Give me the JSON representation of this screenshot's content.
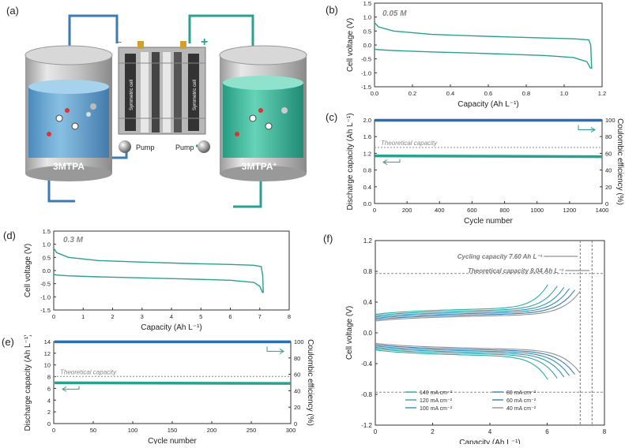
{
  "panels": {
    "a": "(a)",
    "b": "(b)",
    "c": "(c)",
    "d": "(d)",
    "e": "(e)",
    "f": "(f)"
  },
  "schematic": {
    "left_tank_label": "3MTPA",
    "right_tank_label": "3MTPA",
    "right_tank_superscript": "+",
    "pump_left": "Pump",
    "pump_right": "Pump",
    "cell_label_left": "Symmetric cell",
    "cell_label_right": "Symmetric cell",
    "minus_sign": "−",
    "plus_sign": "+"
  },
  "colors": {
    "teal": "#2aa090",
    "blue": "#2a6fb6",
    "gray": "#8c8c8c",
    "left_electrolyte": "#5aa0d0",
    "right_electrolyte": "#2fb89a"
  },
  "chart_data": [
    {
      "id": "b",
      "type": "line",
      "annotation": "0.05 M",
      "xlabel": "Capacity (Ah L⁻¹)",
      "ylabel": "Cell voltage (V)",
      "xlim": [
        0,
        1.2
      ],
      "ylim": [
        -1.5,
        1.5
      ],
      "xticks": [
        "0.0",
        "0.2",
        "0.4",
        "0.6",
        "0.8",
        "1.0",
        "1.2"
      ],
      "yticks": [
        "-1.5",
        "-1.0",
        "-0.5",
        "0.0",
        "0.5",
        "1.0",
        "1.5"
      ],
      "series": [
        {
          "x": [
            0,
            0.02,
            0.1,
            0.3,
            0.5,
            0.7,
            0.9,
            1.05,
            1.13,
            1.14,
            1.145
          ],
          "y": [
            0.8,
            0.65,
            0.5,
            0.38,
            0.33,
            0.29,
            0.25,
            0.22,
            0.18,
            0.0,
            -0.85
          ]
        },
        {
          "x": [
            0,
            0.02,
            0.1,
            0.3,
            0.5,
            0.7,
            0.9,
            1.05,
            1.12,
            1.14
          ],
          "y": [
            -0.15,
            -0.17,
            -0.2,
            -0.25,
            -0.29,
            -0.33,
            -0.38,
            -0.45,
            -0.6,
            -0.85
          ]
        }
      ]
    },
    {
      "id": "c",
      "type": "line",
      "xlabel": "Cycle number",
      "ylabel": "Discharge capacity (Ah L⁻¹)",
      "y2label": "Coulombic efficiency (%)",
      "xlim": [
        0,
        1400
      ],
      "ylim": [
        0,
        2.0
      ],
      "y2lim": [
        0,
        100
      ],
      "xticks": [
        "0",
        "200",
        "400",
        "600",
        "800",
        "1000",
        "1200",
        "1400"
      ],
      "yticks": [
        "0.0",
        "0.4",
        "0.8",
        "1.2",
        "1.6",
        "2.0"
      ],
      "y2ticks": [
        "0",
        "20",
        "40",
        "60",
        "80",
        "100"
      ],
      "reference_label": "Theoretical capacity",
      "reference_value": 1.34,
      "series": [
        {
          "name": "Coulombic efficiency",
          "axis": "right",
          "x": [
            1,
            1400
          ],
          "y": [
            99.5,
            99.5
          ]
        },
        {
          "name": "Discharge capacity",
          "axis": "left",
          "x": [
            1,
            1400
          ],
          "y": [
            1.14,
            1.12
          ]
        }
      ]
    },
    {
      "id": "d",
      "type": "line",
      "annotation": "0.3 M",
      "xlabel": "Capacity (Ah L⁻¹)",
      "ylabel": "Cell voltage (V)",
      "xlim": [
        0,
        8
      ],
      "ylim": [
        -1.5,
        1.5
      ],
      "xticks": [
        "0",
        "1",
        "2",
        "3",
        "4",
        "5",
        "6",
        "7",
        "8"
      ],
      "yticks": [
        "-1.5",
        "-1.0",
        "-0.5",
        "0.0",
        "0.5",
        "1.0",
        "1.5"
      ],
      "series": [
        {
          "x": [
            0,
            0.1,
            0.5,
            1.5,
            3,
            4.5,
            6,
            6.8,
            7.05,
            7.1,
            7.12
          ],
          "y": [
            0.85,
            0.68,
            0.5,
            0.38,
            0.32,
            0.27,
            0.23,
            0.2,
            0.15,
            -0.2,
            -0.85
          ]
        },
        {
          "x": [
            0,
            0.1,
            0.5,
            1.5,
            3,
            4.5,
            6,
            6.8,
            7.0,
            7.1
          ],
          "y": [
            -0.15,
            -0.17,
            -0.2,
            -0.24,
            -0.28,
            -0.32,
            -0.37,
            -0.45,
            -0.6,
            -0.85
          ]
        }
      ]
    },
    {
      "id": "e",
      "type": "line",
      "xlabel": "Cycle number",
      "ylabel": "Discharge capacity (Ah L⁻¹)",
      "y2label": "Coulombic efficiency (%)",
      "xlim": [
        0,
        300
      ],
      "ylim": [
        0,
        14
      ],
      "y2lim": [
        0,
        100
      ],
      "xticks": [
        "0",
        "50",
        "100",
        "150",
        "200",
        "250",
        "300"
      ],
      "yticks": [
        "0",
        "2",
        "4",
        "6",
        "8",
        "10",
        "12",
        "14"
      ],
      "y2ticks": [
        "0",
        "20",
        "40",
        "60",
        "80",
        "100"
      ],
      "reference_label": "Theoretical capacity",
      "reference_value": 8.04,
      "series": [
        {
          "name": "Coulombic efficiency",
          "axis": "right",
          "x": [
            1,
            300
          ],
          "y": [
            99.6,
            99.6
          ]
        },
        {
          "name": "Discharge capacity",
          "axis": "left",
          "x": [
            1,
            300
          ],
          "y": [
            6.95,
            6.85
          ]
        }
      ]
    },
    {
      "id": "f",
      "type": "line",
      "xlabel": "Capacity (Ah L⁻¹)",
      "ylabel": "Cell voltage (V)",
      "xlim": [
        0,
        8.5
      ],
      "ylim": [
        -1.4,
        1.4
      ],
      "xticks": [
        "0",
        "2",
        "4",
        "6",
        "8"
      ],
      "yticks": [
        "-1.2",
        "-0.8",
        "-0.4",
        "0.0",
        "0.4",
        "0.8",
        "1.2"
      ],
      "annotations": [
        {
          "text": "Cycling capacity 7.60 Ah L⁻¹",
          "x": 7.6
        },
        {
          "text": "Theoretical capacity 8.04 Ah L⁻¹",
          "x": 8.04
        }
      ],
      "cutoffs": [
        0.9,
        -0.9
      ],
      "legend": [
        "140 mA cm⁻²",
        "120 mA cm⁻²",
        "100 mA cm⁻²",
        "80 mA cm⁻²",
        "60 mA cm⁻²",
        "40 mA cm⁻²"
      ],
      "series": [
        {
          "name": "140 mA cm⁻²",
          "color": "#2ab0a0",
          "capacity": 6.4
        },
        {
          "name": "120 mA cm⁻²",
          "color": "#3aa0a8",
          "capacity": 6.75
        },
        {
          "name": "100 mA cm⁻²",
          "color": "#2a98b0",
          "capacity": 7.0
        },
        {
          "name": "80 mA cm⁻²",
          "color": "#3a8ab0",
          "capacity": 7.2
        },
        {
          "name": "60 mA cm⁻²",
          "color": "#3a7ab0",
          "capacity": 7.4
        },
        {
          "name": "40 mA cm⁻²",
          "color": "#909090",
          "capacity": 7.6
        }
      ]
    }
  ]
}
